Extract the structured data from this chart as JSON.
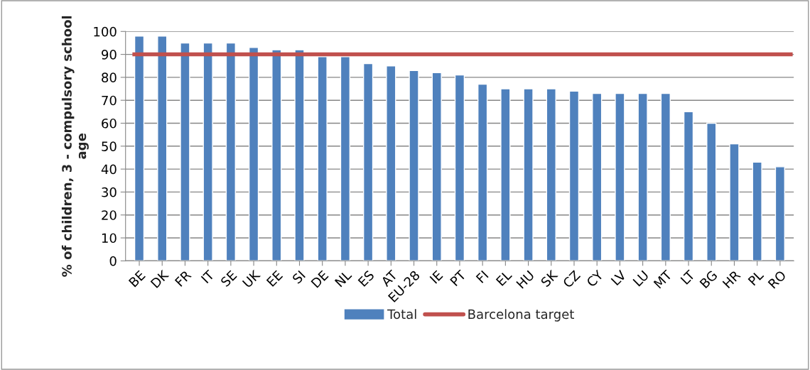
{
  "chart_data": {
    "type": "bar",
    "ylabel": "% of children, 3 - compulsory school age",
    "categories": [
      "BE",
      "DK",
      "FR",
      "IT",
      "SE",
      "UK",
      "EE",
      "SI",
      "DE",
      "NL",
      "ES",
      "AT",
      "EU-28",
      "IE",
      "PT",
      "FI",
      "EL",
      "HU",
      "SK",
      "CZ",
      "CY",
      "LV",
      "LU",
      "MT",
      "LT",
      "BG",
      "HR",
      "PL",
      "RO"
    ],
    "series": [
      {
        "name": "Total",
        "color": "#4f81bd",
        "values": [
          98,
          98,
          95,
          95,
          95,
          93,
          92,
          92,
          89,
          89,
          86,
          85,
          83,
          82,
          81,
          77,
          75,
          75,
          75,
          74,
          73,
          73,
          73,
          73,
          65,
          60,
          51,
          43,
          41
        ]
      }
    ],
    "ref_lines": [
      {
        "axis": "y",
        "value": 90,
        "label": "Barcelona target",
        "color": "#c0504d"
      }
    ],
    "ylim": [
      0,
      100
    ],
    "yticks": [
      0,
      10,
      20,
      30,
      40,
      50,
      60,
      70,
      80,
      90,
      100
    ],
    "grid": "y",
    "legend": "bottom"
  }
}
